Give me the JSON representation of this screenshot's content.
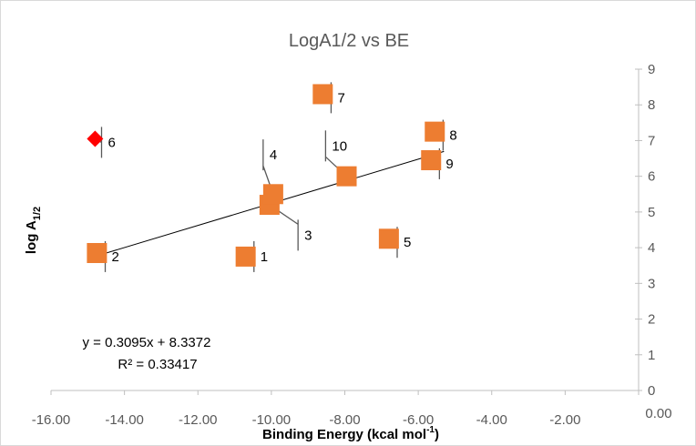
{
  "chart_data": {
    "type": "scatter",
    "title": "LogA1/2 vs BE",
    "xlabel": {
      "main": "Binding Energy (kcal mol",
      "sup": "-1",
      "tail": ")"
    },
    "ylabel": {
      "main": "log A",
      "sub": "1/2"
    },
    "xlim": [
      -16,
      0
    ],
    "ylim": [
      0,
      9
    ],
    "x_ticks": [
      -16,
      -14,
      -12,
      -10,
      -8,
      -6,
      -4,
      -2,
      0
    ],
    "x_tick_labels": [
      "-16.00",
      "-14.00",
      "-12.00",
      "-10.00",
      "-8.00",
      "-6.00",
      "-4.00",
      "-2.00",
      "0.00"
    ],
    "y_ticks": [
      0,
      1,
      2,
      3,
      4,
      5,
      6,
      7,
      8,
      9
    ],
    "y_tick_labels": [
      "0",
      "1",
      "2",
      "3",
      "4",
      "5",
      "6",
      "7",
      "8",
      "9"
    ],
    "grid": false,
    "marker_colors": {
      "square": "#ed7d31",
      "diamond": "#ff0000",
      "leader": "#595959",
      "trendline": "#000000"
    },
    "points": [
      {
        "label": "1",
        "x": -10.7,
        "y": 3.75,
        "marker": "square",
        "label_x": -10.3,
        "label_y": 3.75
      },
      {
        "label": "2",
        "x": -14.75,
        "y": 3.85,
        "marker": "square",
        "label_x": -14.35,
        "label_y": 3.75
      },
      {
        "label": "3",
        "x": -10.05,
        "y": 5.2,
        "marker": "square",
        "label_x": -9.1,
        "label_y": 4.35
      },
      {
        "label": "4",
        "x": -9.95,
        "y": 5.5,
        "marker": "square",
        "label_x": -10.05,
        "label_y": 6.6
      },
      {
        "label": "5",
        "x": -6.8,
        "y": 4.25,
        "marker": "square",
        "label_x": -6.4,
        "label_y": 4.15
      },
      {
        "label": "6",
        "x": -14.8,
        "y": 7.05,
        "marker": "diamond",
        "label_x": -14.45,
        "label_y": 6.95
      },
      {
        "label": "7",
        "x": -8.6,
        "y": 8.3,
        "marker": "square",
        "label_x": -8.2,
        "label_y": 8.2
      },
      {
        "label": "8",
        "x": -5.55,
        "y": 7.25,
        "marker": "square",
        "label_x": -5.15,
        "label_y": 7.15
      },
      {
        "label": "9",
        "x": -5.65,
        "y": 6.45,
        "marker": "square",
        "label_x": -5.25,
        "label_y": 6.35
      },
      {
        "label": "10",
        "x": -7.95,
        "y": 6.0,
        "marker": "square",
        "label_x": -8.35,
        "label_y": 6.85
      }
    ],
    "trendline": {
      "type": "linear",
      "slope": 0.3095,
      "intercept": 8.3372,
      "x_start": -14.75,
      "x_end": -5.3,
      "equation": "y = 0.3095x + 8.3372",
      "r2": "R² = 0.33417"
    }
  }
}
